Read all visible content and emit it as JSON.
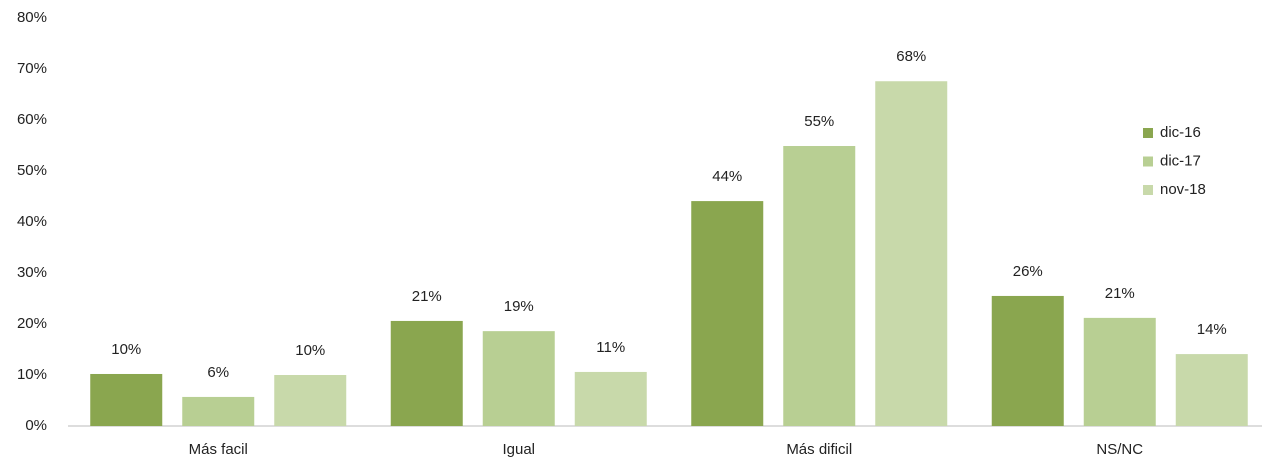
{
  "chart_data": {
    "type": "bar",
    "categories": [
      "Más facil",
      "Igual",
      "Más dificil",
      "NS/NC"
    ],
    "series": [
      {
        "name": "dic-16",
        "color": "#8aa64f",
        "values": [
          10.2,
          20.6,
          44.1,
          25.5
        ],
        "value_labels": [
          "10%",
          "21%",
          "44%",
          "26%"
        ]
      },
      {
        "name": "dic-17",
        "color": "#b8cf93",
        "values": [
          5.7,
          18.6,
          54.9,
          21.2
        ],
        "value_labels": [
          "6%",
          "19%",
          "55%",
          "21%"
        ]
      },
      {
        "name": "nov-18",
        "color": "#c8d9aa",
        "values": [
          10.0,
          10.6,
          67.6,
          14.1
        ],
        "value_labels": [
          "10%",
          "11%",
          "68%",
          "14%"
        ]
      }
    ],
    "ylim": [
      0,
      80
    ],
    "yticks": [
      {
        "value": 0,
        "label": "0%"
      },
      {
        "value": 10,
        "label": "10%"
      },
      {
        "value": 20,
        "label": "20%"
      },
      {
        "value": 30,
        "label": "30%"
      },
      {
        "value": 40,
        "label": "40%"
      },
      {
        "value": 50,
        "label": "50%"
      },
      {
        "value": 60,
        "label": "60%"
      },
      {
        "value": 70,
        "label": "70%"
      },
      {
        "value": 80,
        "label": "80%"
      }
    ],
    "grid": false,
    "legend": "right"
  }
}
